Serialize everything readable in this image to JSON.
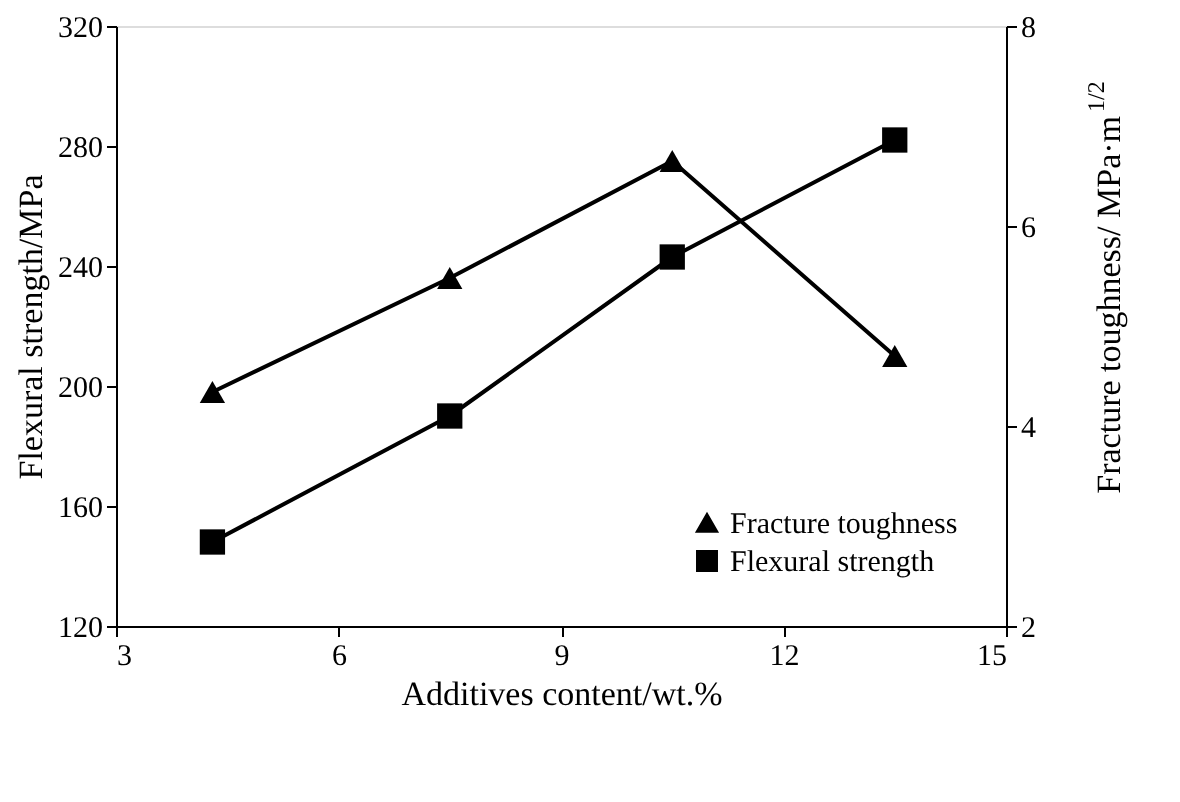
{
  "chart_data": {
    "type": "line",
    "xlabel": "Additives content/wt.%",
    "ylabel": "Flexural strength/MPa",
    "y2label": "Fracture toughness/ MPa·m$^{1/2}$",
    "x": [
      4.3,
      7.5,
      10.5,
      13.5
    ],
    "series": [
      {
        "name": "Fracture toughness",
        "color": "#000000",
        "marker": "triangle",
        "axis": "y2",
        "values": [
          4.34,
          5.48,
          6.65,
          4.7
        ]
      },
      {
        "name": "Flexural strength",
        "color": "#000000",
        "marker": "square",
        "values": [
          148,
          190,
          243,
          282
        ]
      }
    ],
    "xlim": [
      3,
      15
    ],
    "xticks": [
      3,
      6,
      9,
      12,
      15
    ],
    "ylim": [
      120,
      320
    ],
    "yticks": [
      120,
      160,
      200,
      240,
      280,
      320
    ],
    "y2lim": [
      2,
      8
    ],
    "y2ticks": [
      2,
      4,
      6,
      8
    ],
    "legend": "bottom right",
    "grid": false,
    "line_style": "solid"
  }
}
